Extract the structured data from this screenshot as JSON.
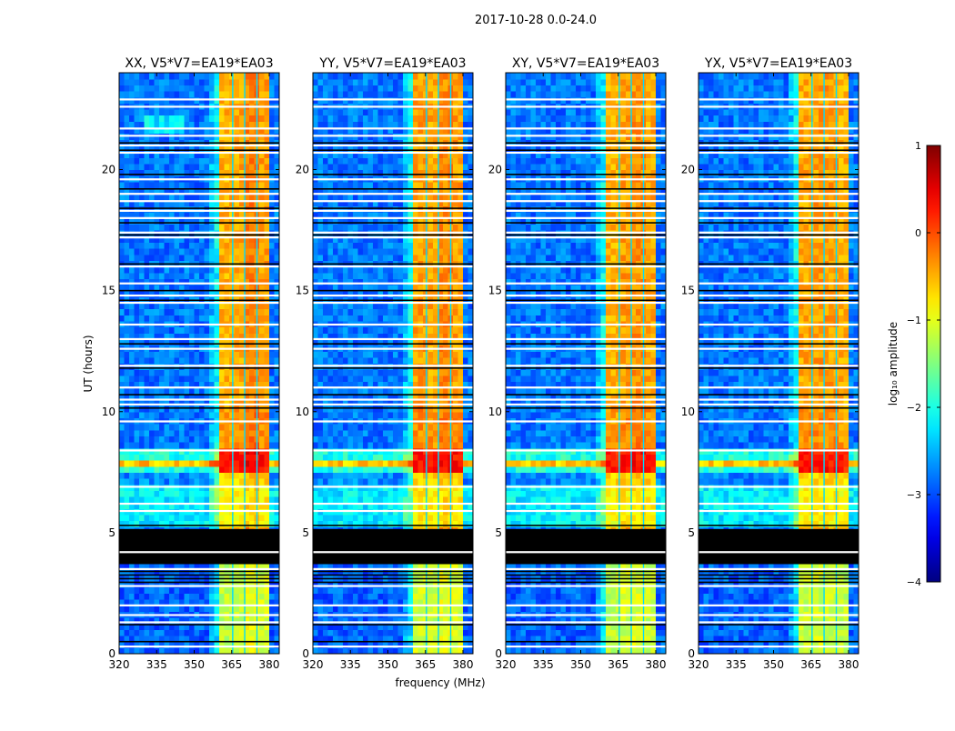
{
  "chart_data": {
    "type": "heatmap",
    "suptitle": "2017-10-28 0.0-24.0",
    "xlabel": "frequency (MHz)",
    "ylabel": "UT (hours)",
    "xlim": [
      320,
      384
    ],
    "ylim": [
      0,
      24
    ],
    "xticks": [
      320,
      335,
      350,
      365,
      380
    ],
    "yticks": [
      0,
      5,
      10,
      15,
      20
    ],
    "panels": [
      {
        "title": "XX, V5*V7=EA19*EA03",
        "rfi_offsets": [
          0.0,
          0.05,
          0.25,
          0.1
        ]
      },
      {
        "title": "YY, V5*V7=EA19*EA03",
        "rfi_offsets": [
          0.1,
          0.05,
          0.2,
          0.1
        ]
      },
      {
        "title": "XY, V5*V7=EA19*EA03",
        "rfi_offsets": [
          0.0,
          0.1,
          0.15,
          0.05
        ]
      },
      {
        "title": "YX, V5*V7=EA19*EA03",
        "rfi_offsets": [
          0.05,
          0.1,
          0.1,
          0.0
        ]
      }
    ],
    "background_level": -2.8,
    "rfi_band_mhz": [
      360.5,
      380
    ],
    "rfi_ramp_start_mhz": 355,
    "subband_edges_mhz": [
      365.4,
      370.2,
      375.1
    ],
    "time_segments": [
      {
        "t": [
          0,
          3.7
        ],
        "bg": -2.9,
        "rfi": -1.2
      },
      {
        "t": [
          5.15,
          7.0
        ],
        "bg": -2.2,
        "rfi": -0.9
      },
      {
        "t": [
          7.0,
          7.5
        ],
        "bg": -2.7,
        "rfi": -0.7
      },
      {
        "t": [
          7.5,
          8.45
        ],
        "bg": -2.0,
        "rfi": 0.2
      },
      {
        "t": [
          8.45,
          10.2
        ],
        "bg": -2.8,
        "rfi": -0.4
      },
      {
        "t": [
          10.2,
          24
        ],
        "bg": -2.8,
        "rfi": -0.5
      }
    ],
    "event_stripe_hours": [
      7.7,
      8.0
    ],
    "flagged_ranges": [
      [
        3.7,
        5.15
      ]
    ],
    "white_lines": [
      22.9,
      22.6,
      21.7,
      21.4,
      21.0,
      20.7,
      19.6,
      19.0,
      18.7,
      18.3,
      18.0,
      17.4,
      17.2,
      16.0,
      15.3,
      14.8,
      14.5,
      13.6,
      13.0,
      12.6,
      11.9,
      11.0,
      10.5,
      10.3,
      9.6,
      8.4,
      6.9,
      6.2,
      5.9,
      4.2,
      3.5,
      2.8,
      2.0,
      1.6,
      1.3,
      0.3
    ],
    "black_lines": [
      21.1,
      20.8,
      19.8,
      19.2,
      18.4,
      17.8,
      17.3,
      16.1,
      15.0,
      14.6,
      12.8,
      11.8,
      10.7,
      10.15,
      5.3,
      3.4,
      3.25,
      3.1,
      2.95,
      1.2,
      0.5
    ],
    "colorbar": {
      "label": "log₁₀ amplitude",
      "range": [
        -4,
        1
      ],
      "tick_values": [
        -4,
        -3,
        -2,
        -1,
        0,
        1
      ],
      "tick_labels": [
        "−4",
        "−3",
        "−2",
        "−1",
        "0",
        "1"
      ]
    }
  }
}
